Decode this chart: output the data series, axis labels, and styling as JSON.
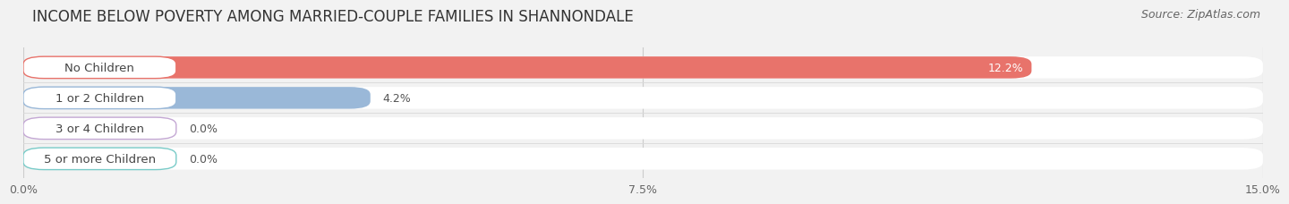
{
  "title": "INCOME BELOW POVERTY AMONG MARRIED-COUPLE FAMILIES IN SHANNONDALE",
  "source": "Source: ZipAtlas.com",
  "categories": [
    "No Children",
    "1 or 2 Children",
    "3 or 4 Children",
    "5 or more Children"
  ],
  "values": [
    12.2,
    4.2,
    0.0,
    0.0
  ],
  "bar_colors": [
    "#e8736b",
    "#9ab8d8",
    "#c4a8d4",
    "#79cbc8"
  ],
  "value_labels": [
    "12.2%",
    "4.2%",
    "0.0%",
    "0.0%"
  ],
  "value_label_inside": [
    true,
    false,
    false,
    false
  ],
  "xlim": [
    0,
    15.0
  ],
  "xticks": [
    0.0,
    7.5,
    15.0
  ],
  "xticklabels": [
    "0.0%",
    "7.5%",
    "15.0%"
  ],
  "background_color": "#f2f2f2",
  "bar_bg_color": "#ffffff",
  "row_sep_color": "#d8d8d8",
  "title_fontsize": 12,
  "tick_fontsize": 9,
  "label_fontsize": 9.5,
  "value_fontsize": 9,
  "source_fontsize": 9
}
